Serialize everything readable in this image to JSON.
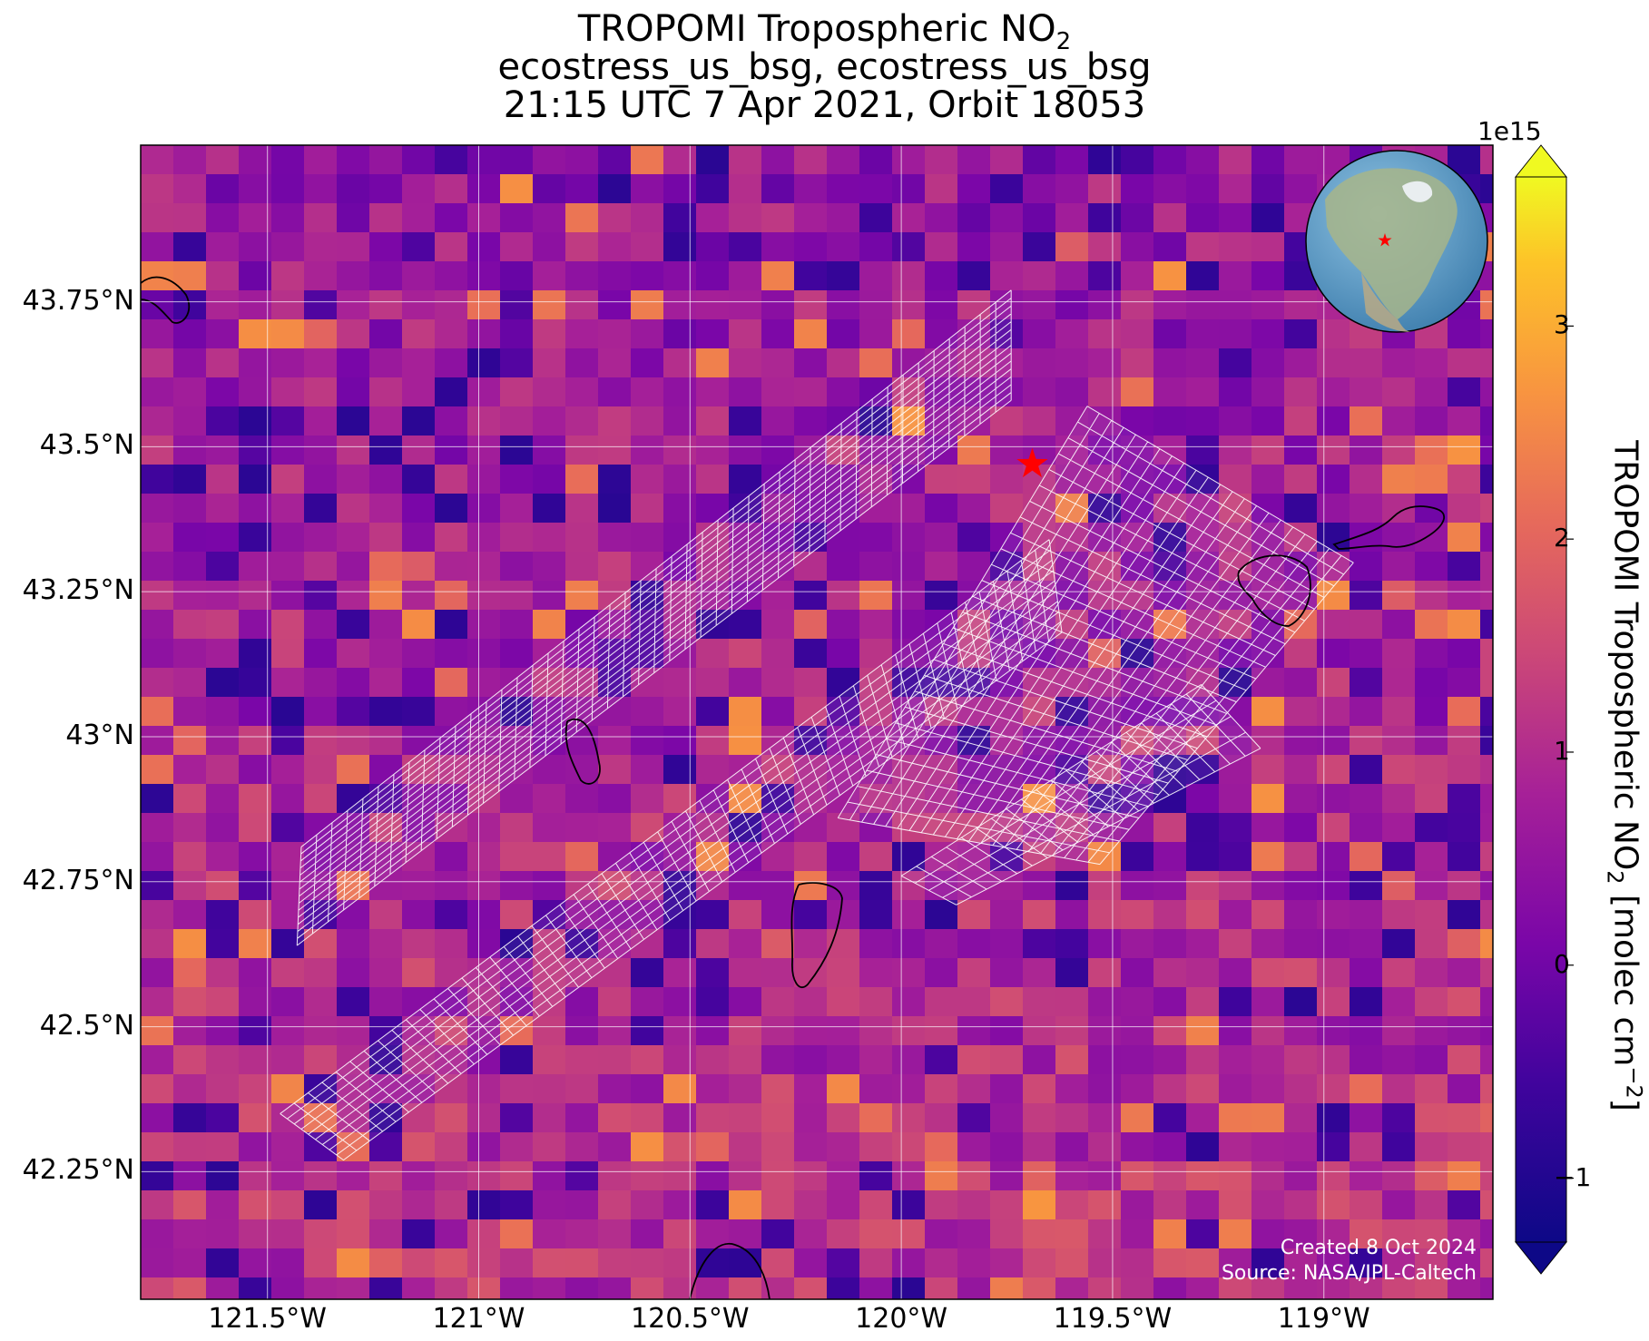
{
  "title": {
    "line1_prefix": "TROPOMI Tropospheric NO",
    "line1_sub": "2",
    "line2": "ecostress_us_bsg, ecostress_us_bsg",
    "line3": "21:15 UTC 7 Apr 2021, Orbit 18053"
  },
  "map": {
    "lon_range": [
      -121.8,
      -118.6
    ],
    "lat_range": [
      42.03,
      44.02
    ],
    "lat_ticks": [
      {
        "value": 43.75,
        "label": "43.75°N"
      },
      {
        "value": 43.5,
        "label": "43.5°N"
      },
      {
        "value": 43.25,
        "label": "43.25°N"
      },
      {
        "value": 43.0,
        "label": "43°N"
      },
      {
        "value": 42.75,
        "label": "42.75°N"
      },
      {
        "value": 42.5,
        "label": "42.5°N"
      },
      {
        "value": 42.25,
        "label": "42.25°N"
      }
    ],
    "lon_ticks": [
      {
        "value": -121.5,
        "label": "121.5°W"
      },
      {
        "value": -121.0,
        "label": "121°W"
      },
      {
        "value": -120.5,
        "label": "120.5°W"
      },
      {
        "value": -120.0,
        "label": "120°W"
      },
      {
        "value": -119.5,
        "label": "119.5°W"
      },
      {
        "value": -119.0,
        "label": "119°W"
      }
    ],
    "gridlines": true,
    "site_marker": {
      "lon": -119.69,
      "lat": 43.47,
      "color": "#ff0000",
      "icon": "star-icon"
    },
    "overlay_color": "#ffffff",
    "inset_globe": {
      "placement": "top-right",
      "icon": "globe-icon",
      "marker_color": "#ff0000"
    }
  },
  "colorbar": {
    "min": -1.3,
    "max": 3.7,
    "exponent_label": "1e15",
    "ticks": [
      {
        "value": -1,
        "label": "−1"
      },
      {
        "value": 0,
        "label": "0"
      },
      {
        "value": 1,
        "label": "1"
      },
      {
        "value": 2,
        "label": "2"
      },
      {
        "value": 3,
        "label": "3"
      }
    ],
    "colormap": "plasma",
    "extend": "both",
    "label_prefix": "TROPOMI Tropospheric NO",
    "label_sub": "2",
    "label_mid": " [molec cm",
    "label_sup": "−2",
    "label_suffix": "]"
  },
  "credits": {
    "created": "Created 8 Oct 2024",
    "source": "Source: NASA/JPL-Caltech"
  }
}
